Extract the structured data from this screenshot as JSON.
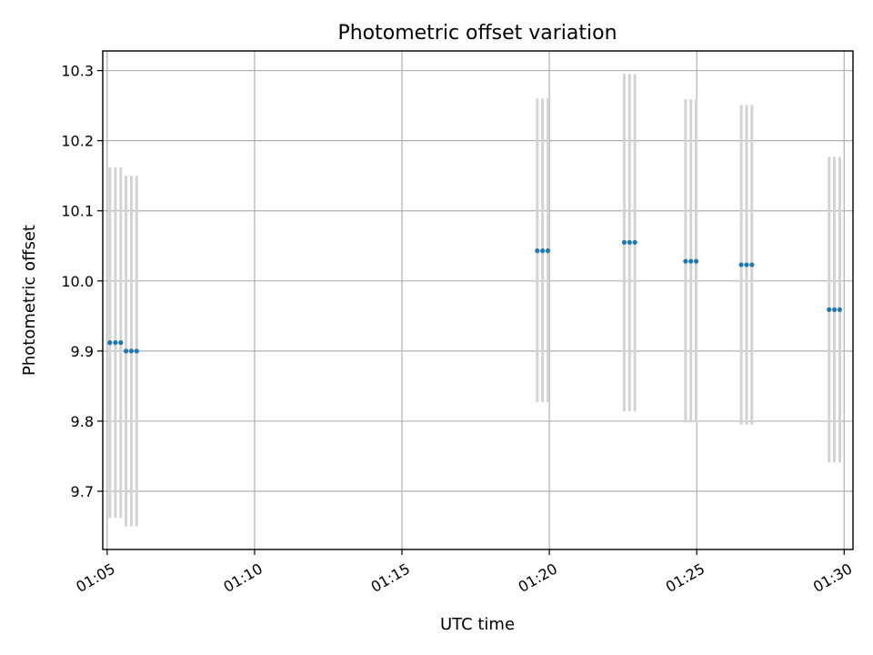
{
  "chart_data": {
    "type": "scatter",
    "title": "Photometric offset variation",
    "xlabel": "UTC time",
    "ylabel": "Photometric offset",
    "x_unit": "minutes after 01:00 UTC",
    "xlim": [
      64.85,
      90.3
    ],
    "ylim": [
      9.617,
      10.328
    ],
    "x_ticks": [
      {
        "value": 65,
        "label": "01:05"
      },
      {
        "value": 70,
        "label": "01:10"
      },
      {
        "value": 75,
        "label": "01:15"
      },
      {
        "value": 80,
        "label": "01:20"
      },
      {
        "value": 85,
        "label": "01:25"
      },
      {
        "value": 90,
        "label": "01:30"
      }
    ],
    "y_ticks": [
      {
        "value": 9.7,
        "label": "9.7"
      },
      {
        "value": 9.8,
        "label": "9.8"
      },
      {
        "value": 9.9,
        "label": "9.9"
      },
      {
        "value": 10.0,
        "label": "10.0"
      },
      {
        "value": 10.1,
        "label": "10.1"
      },
      {
        "value": 10.2,
        "label": "10.2"
      },
      {
        "value": 10.3,
        "label": "10.3"
      }
    ],
    "grid": true,
    "colors": {
      "points": "#1f77b4",
      "errorbars": "#d3d3d3"
    },
    "points": [
      {
        "x": 65.09,
        "y": 9.912,
        "ylow": 9.662,
        "yhigh": 10.162
      },
      {
        "x": 65.28,
        "y": 9.912,
        "ylow": 9.662,
        "yhigh": 10.162
      },
      {
        "x": 65.46,
        "y": 9.912,
        "ylow": 9.662,
        "yhigh": 10.162
      },
      {
        "x": 65.64,
        "y": 9.9,
        "ylow": 9.65,
        "yhigh": 10.15
      },
      {
        "x": 65.82,
        "y": 9.9,
        "ylow": 9.65,
        "yhigh": 10.15
      },
      {
        "x": 66.0,
        "y": 9.9,
        "ylow": 9.65,
        "yhigh": 10.15
      },
      {
        "x": 79.59,
        "y": 10.043,
        "ylow": 9.827,
        "yhigh": 10.26
      },
      {
        "x": 79.77,
        "y": 10.043,
        "ylow": 9.827,
        "yhigh": 10.26
      },
      {
        "x": 79.95,
        "y": 10.043,
        "ylow": 9.827,
        "yhigh": 10.26
      },
      {
        "x": 82.54,
        "y": 10.055,
        "ylow": 9.814,
        "yhigh": 10.295
      },
      {
        "x": 82.72,
        "y": 10.055,
        "ylow": 9.814,
        "yhigh": 10.295
      },
      {
        "x": 82.9,
        "y": 10.055,
        "ylow": 9.814,
        "yhigh": 10.295
      },
      {
        "x": 84.62,
        "y": 10.028,
        "ylow": 9.798,
        "yhigh": 10.259
      },
      {
        "x": 84.8,
        "y": 10.028,
        "ylow": 9.798,
        "yhigh": 10.259
      },
      {
        "x": 84.98,
        "y": 10.028,
        "ylow": 9.798,
        "yhigh": 10.259
      },
      {
        "x": 86.51,
        "y": 10.023,
        "ylow": 9.795,
        "yhigh": 10.251
      },
      {
        "x": 86.69,
        "y": 10.023,
        "ylow": 9.795,
        "yhigh": 10.251
      },
      {
        "x": 86.87,
        "y": 10.023,
        "ylow": 9.795,
        "yhigh": 10.251
      },
      {
        "x": 89.49,
        "y": 9.959,
        "ylow": 9.741,
        "yhigh": 10.177
      },
      {
        "x": 89.67,
        "y": 9.959,
        "ylow": 9.741,
        "yhigh": 10.177
      },
      {
        "x": 89.85,
        "y": 9.959,
        "ylow": 9.741,
        "yhigh": 10.177
      }
    ]
  }
}
